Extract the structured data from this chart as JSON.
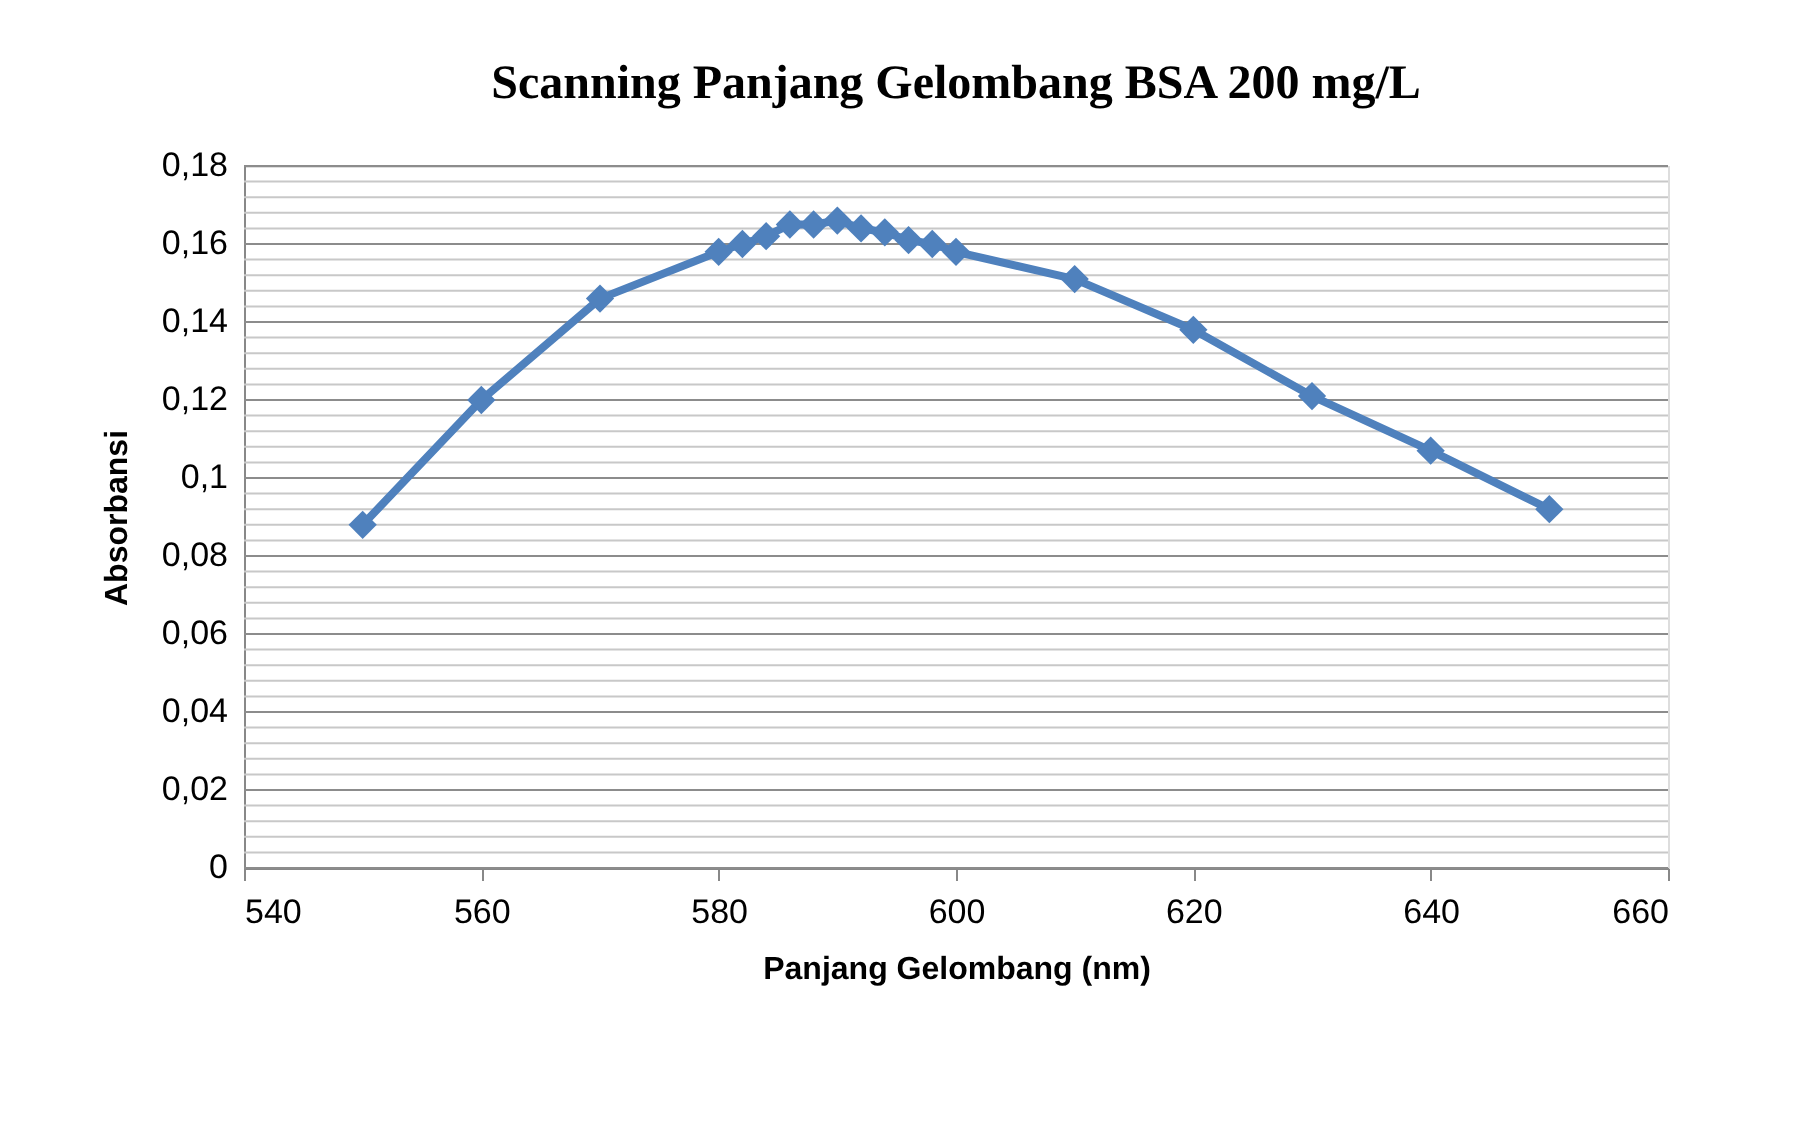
{
  "chart_data": {
    "type": "line",
    "title": "Scanning Panjang Gelombang BSA 200 mg/L",
    "xlabel": "Panjang Gelombang (nm)",
    "ylabel": "Absorbansi",
    "x": [
      550,
      560,
      570,
      580,
      582,
      584,
      586,
      588,
      590,
      592,
      594,
      596,
      598,
      600,
      610,
      620,
      630,
      640,
      650
    ],
    "series": [
      {
        "color": "#4f81bd",
        "values": [
          0.088,
          0.12,
          0.146,
          0.158,
          0.16,
          0.162,
          0.165,
          0.165,
          0.166,
          0.164,
          0.163,
          0.161,
          0.16,
          0.158,
          0.151,
          0.138,
          0.121,
          0.107,
          0.092
        ]
      }
    ],
    "xlim": [
      540,
      660
    ],
    "xticks": [
      540,
      560,
      580,
      600,
      620,
      640,
      660
    ],
    "ylim": [
      0,
      0.18
    ],
    "yticks": [
      {
        "value": 0,
        "label": "0"
      },
      {
        "value": 0.004,
        "label": null
      },
      {
        "value": 0.008,
        "label": null
      },
      {
        "value": 0.012,
        "label": null
      },
      {
        "value": 0.016,
        "label": null
      },
      {
        "value": 0.02,
        "label": "0,02"
      },
      {
        "value": 0.024,
        "label": null
      },
      {
        "value": 0.028,
        "label": null
      },
      {
        "value": 0.032,
        "label": null
      },
      {
        "value": 0.036,
        "label": null
      },
      {
        "value": 0.04,
        "label": "0,04"
      },
      {
        "value": 0.044,
        "label": null
      },
      {
        "value": 0.048,
        "label": null
      },
      {
        "value": 0.052,
        "label": null
      },
      {
        "value": 0.056,
        "label": null
      },
      {
        "value": 0.06,
        "label": "0,06"
      },
      {
        "value": 0.064,
        "label": null
      },
      {
        "value": 0.068,
        "label": null
      },
      {
        "value": 0.072,
        "label": null
      },
      {
        "value": 0.076,
        "label": null
      },
      {
        "value": 0.08,
        "label": "0,08"
      },
      {
        "value": 0.084,
        "label": null
      },
      {
        "value": 0.088,
        "label": null
      },
      {
        "value": 0.092,
        "label": null
      },
      {
        "value": 0.096,
        "label": null
      },
      {
        "value": 0.1,
        "label": "0,1"
      },
      {
        "value": 0.104,
        "label": null
      },
      {
        "value": 0.108,
        "label": null
      },
      {
        "value": 0.112,
        "label": null
      },
      {
        "value": 0.116,
        "label": null
      },
      {
        "value": 0.12,
        "label": "0,12"
      },
      {
        "value": 0.124,
        "label": null
      },
      {
        "value": 0.128,
        "label": null
      },
      {
        "value": 0.132,
        "label": null
      },
      {
        "value": 0.136,
        "label": null
      },
      {
        "value": 0.14,
        "label": "0,14"
      },
      {
        "value": 0.144,
        "label": null
      },
      {
        "value": 0.148,
        "label": null
      },
      {
        "value": 0.152,
        "label": null
      },
      {
        "value": 0.156,
        "label": null
      },
      {
        "value": 0.16,
        "label": "0,16"
      },
      {
        "value": 0.164,
        "label": null
      },
      {
        "value": 0.168,
        "label": null
      },
      {
        "value": 0.172,
        "label": null
      },
      {
        "value": 0.176,
        "label": null
      },
      {
        "value": 0.18,
        "label": "0,18"
      }
    ],
    "grid": "y",
    "marker": "diamond",
    "line_style": "solid"
  }
}
